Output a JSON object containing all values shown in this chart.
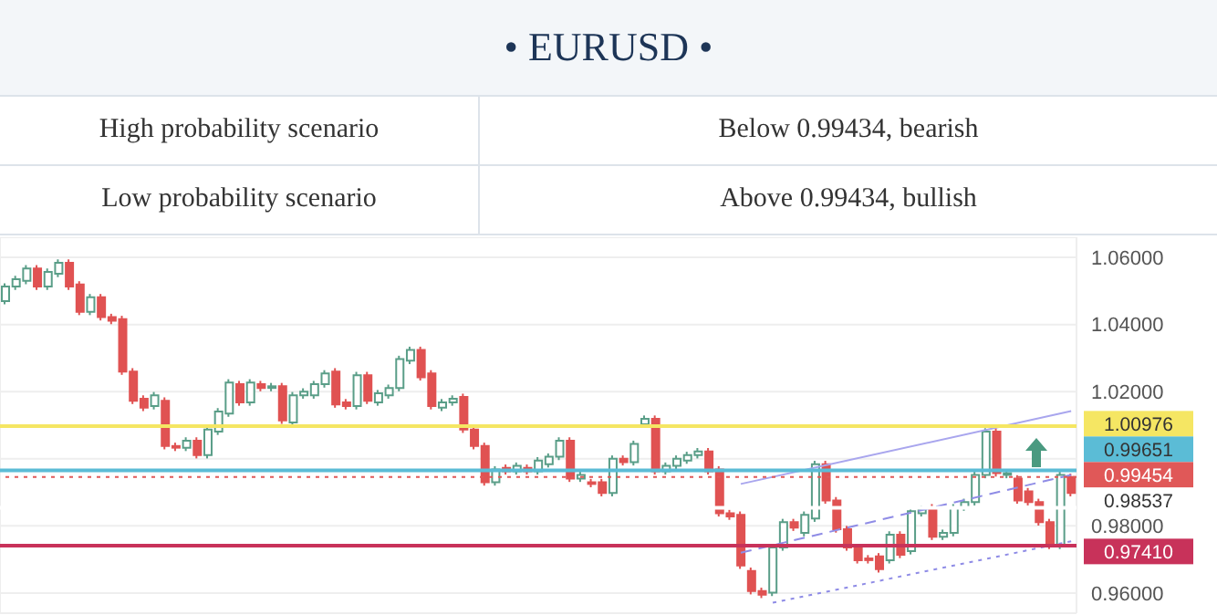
{
  "chart_data": {
    "type": "candlestick",
    "title": "• EURUSD •",
    "annotations": [
      "High probability scenario",
      "Below 0.99434, bearish",
      "Low probability scenario",
      "Above 0.99434, bullish"
    ],
    "categories": [
      null,
      null,
      null,
      null,
      null,
      null,
      null,
      null,
      null,
      null,
      null,
      null,
      null,
      null,
      null,
      null,
      null,
      null,
      null,
      null,
      null,
      null,
      null,
      null,
      null,
      null,
      null,
      null,
      null,
      null,
      null,
      null,
      null,
      null,
      null,
      null,
      null,
      null,
      null,
      null,
      null,
      null,
      null,
      null,
      null,
      null,
      null,
      null,
      null,
      null,
      null,
      null,
      null,
      null,
      null,
      null,
      null,
      null,
      null,
      null,
      null,
      null,
      null,
      null,
      null,
      null,
      null,
      null,
      null,
      null,
      null,
      null,
      null,
      null,
      null,
      null,
      null,
      null,
      null,
      null,
      null,
      null,
      null,
      null,
      null,
      null,
      null,
      null,
      null,
      null,
      null,
      null,
      null,
      null,
      null,
      null,
      null,
      null,
      null,
      null,
      null
    ],
    "ohlc": [
      [
        1.047,
        1.0523,
        1.046,
        1.0513
      ],
      [
        1.0513,
        1.0545,
        1.0503,
        1.0535
      ],
      [
        1.053,
        1.0577,
        1.052,
        1.0567
      ],
      [
        1.0567,
        1.0577,
        1.0503,
        1.0513
      ],
      [
        1.0513,
        1.0567,
        1.0503,
        1.0557
      ],
      [
        1.0551,
        1.0594,
        1.0541,
        1.0584
      ],
      [
        1.0584,
        1.0594,
        1.0503,
        1.0513
      ],
      [
        1.0519,
        1.0529,
        1.0428,
        1.0438
      ],
      [
        1.0438,
        1.0491,
        1.0428,
        1.0481
      ],
      [
        1.0481,
        1.0491,
        1.0412,
        1.0422
      ],
      [
        1.0422,
        1.0432,
        1.0401,
        1.0411
      ],
      [
        1.0416,
        1.0426,
        1.025,
        1.026
      ],
      [
        1.026,
        1.027,
        1.0163,
        1.0173
      ],
      [
        1.0179,
        1.0189,
        1.0142,
        1.0152
      ],
      [
        1.0157,
        1.0199,
        1.0147,
        1.0189
      ],
      [
        1.0173,
        1.0183,
        1.0028,
        1.0038
      ],
      [
        1.0038,
        1.0048,
        1.0023,
        1.0033
      ],
      [
        1.0033,
        1.0064,
        1.0023,
        1.0054
      ],
      [
        1.0054,
        1.0064,
        1.0001,
        1.0011
      ],
      [
        1.0011,
        1.0097,
        1.0001,
        1.0087
      ],
      [
        1.0081,
        1.0151,
        1.0071,
        1.0141
      ],
      [
        1.0135,
        1.0237,
        1.0125,
        1.0227
      ],
      [
        1.0222,
        1.0232,
        1.0158,
        1.0168
      ],
      [
        1.0168,
        1.0237,
        1.0158,
        1.0227
      ],
      [
        1.0222,
        1.0232,
        1.0201,
        1.0211
      ],
      [
        1.0211,
        1.0226,
        1.0201,
        1.0216
      ],
      [
        1.0216,
        1.0226,
        1.0104,
        1.0114
      ],
      [
        1.0108,
        1.0199,
        1.0098,
        1.0189
      ],
      [
        1.0189,
        1.021,
        1.0179,
        1.02
      ],
      [
        1.0189,
        1.0232,
        1.0179,
        1.0222
      ],
      [
        1.0222,
        1.0264,
        1.0212,
        1.0254
      ],
      [
        1.026,
        1.027,
        1.0152,
        1.0162
      ],
      [
        1.0168,
        1.0178,
        1.0147,
        1.0157
      ],
      [
        1.0157,
        1.0259,
        1.0147,
        1.0249
      ],
      [
        1.0249,
        1.0259,
        1.0163,
        1.0173
      ],
      [
        1.0168,
        1.0205,
        1.0158,
        1.0195
      ],
      [
        1.0189,
        1.0221,
        1.0179,
        1.0211
      ],
      [
        1.0211,
        1.0307,
        1.0201,
        1.0297
      ],
      [
        1.0292,
        1.0334,
        1.0282,
        1.0324
      ],
      [
        1.0324,
        1.0334,
        1.0233,
        1.0243
      ],
      [
        1.0254,
        1.0264,
        1.0147,
        1.0157
      ],
      [
        1.0152,
        1.0178,
        1.0142,
        1.0168
      ],
      [
        1.0168,
        1.0189,
        1.0158,
        1.0179
      ],
      [
        1.0184,
        1.0194,
        1.0077,
        1.0087
      ],
      [
        1.0087,
        1.0097,
        1.0028,
        1.0038
      ],
      [
        1.0038,
        1.0048,
        0.992,
        0.993
      ],
      [
        0.993,
        0.9978,
        0.992,
        0.9968
      ],
      [
        0.9973,
        0.9983,
        0.9953,
        0.9963
      ],
      [
        0.9963,
        0.9989,
        0.9953,
        0.9979
      ],
      [
        0.9973,
        0.9983,
        0.9953,
        0.9963
      ],
      [
        0.9963,
        1.0005,
        0.9953,
        0.9995
      ],
      [
        0.9984,
        1.0016,
        0.9974,
        1.0006
      ],
      [
        1.0006,
        1.0064,
        0.9996,
        1.0054
      ],
      [
        1.0054,
        1.0064,
        0.9931,
        0.9941
      ],
      [
        0.9941,
        0.9962,
        0.9931,
        0.9952
      ],
      [
        0.993,
        0.994,
        0.9915,
        0.9925
      ],
      [
        0.993,
        0.994,
        0.9888,
        0.9898
      ],
      [
        0.9898,
        1.001,
        0.9888,
        1.0
      ],
      [
        1.0,
        1.001,
        0.998,
        0.999
      ],
      [
        0.999,
        1.0054,
        0.998,
        1.0044
      ],
      [
        1.0103,
        1.0129,
        1.0093,
        1.0119
      ],
      [
        1.0119,
        1.0129,
        0.9953,
        0.9963
      ],
      [
        0.9963,
        0.9989,
        0.9953,
        0.9979
      ],
      [
        0.9979,
        1.001,
        0.9969,
        1.0
      ],
      [
        0.9995,
        1.0021,
        0.9985,
        1.0011
      ],
      [
        1.0011,
        1.0032,
        1.0001,
        1.0022
      ],
      [
        1.0022,
        1.0032,
        0.9953,
        0.9963
      ],
      [
        0.9968,
        0.9978,
        0.9828,
        0.9838
      ],
      [
        0.9838,
        0.9848,
        0.9818,
        0.9828
      ],
      [
        0.9833,
        0.9843,
        0.9672,
        0.9682
      ],
      [
        0.9666,
        0.9676,
        0.9596,
        0.9606
      ],
      [
        0.9606,
        0.9616,
        0.9585,
        0.9595
      ],
      [
        0.9601,
        0.9746,
        0.9591,
        0.9736
      ],
      [
        0.9736,
        0.9821,
        0.9726,
        0.9811
      ],
      [
        0.9811,
        0.9821,
        0.9785,
        0.9795
      ],
      [
        0.9779,
        0.9843,
        0.9769,
        0.9833
      ],
      [
        0.9822,
        0.9994,
        0.9812,
        0.9984
      ],
      [
        0.9984,
        0.9994,
        0.9866,
        0.9876
      ],
      [
        0.9876,
        0.9886,
        0.978,
        0.979
      ],
      [
        0.979,
        0.98,
        0.9726,
        0.9736
      ],
      [
        0.9736,
        0.9746,
        0.9688,
        0.9698
      ],
      [
        0.9703,
        0.9713,
        0.9688,
        0.9698
      ],
      [
        0.9709,
        0.9719,
        0.9661,
        0.9671
      ],
      [
        0.9698,
        0.9784,
        0.9688,
        0.9774
      ],
      [
        0.9774,
        0.9784,
        0.9704,
        0.9714
      ],
      [
        0.9725,
        0.9854,
        0.9715,
        0.9844
      ],
      [
        0.9838,
        0.9859,
        0.9828,
        0.9849
      ],
      [
        0.9855,
        0.9865,
        0.9758,
        0.9768
      ],
      [
        0.9768,
        0.9789,
        0.9758,
        0.9779
      ],
      [
        0.9779,
        0.9865,
        0.9769,
        0.9855
      ],
      [
        0.9855,
        0.9881,
        0.9845,
        0.9871
      ],
      [
        0.9871,
        0.9962,
        0.9861,
        0.9952
      ],
      [
        0.9952,
        1.0091,
        0.9942,
        1.0081
      ],
      [
        1.0081,
        1.0091,
        0.9947,
        0.9957
      ],
      [
        0.9952,
        0.9967,
        0.9942,
        0.9957
      ],
      [
        0.9941,
        0.9951,
        0.9866,
        0.9876
      ],
      [
        0.9903,
        0.9913,
        0.9861,
        0.9871
      ],
      [
        0.9871,
        0.9881,
        0.9801,
        0.9811
      ],
      [
        0.9811,
        0.9821,
        0.9731,
        0.9741
      ],
      [
        0.9741,
        0.9962,
        0.9731,
        0.9952
      ],
      [
        0.9946,
        0.9956,
        0.9888,
        0.9898
      ]
    ],
    "colors": [
      "#5a9e88",
      "#5a9e88",
      "#5a9e88",
      "#e05252",
      "#5a9e88",
      "#5a9e88",
      "#e05252",
      "#e05252",
      "#5a9e88",
      "#e05252",
      "#e05252",
      "#e05252",
      "#e05252",
      "#e05252",
      "#5a9e88",
      "#e05252",
      "#e05252",
      "#5a9e88",
      "#e05252",
      "#5a9e88",
      "#5a9e88",
      "#5a9e88",
      "#e05252",
      "#5a9e88",
      "#e05252",
      "#5a9e88",
      "#e05252",
      "#5a9e88",
      "#5a9e88",
      "#5a9e88",
      "#5a9e88",
      "#e05252",
      "#e05252",
      "#5a9e88",
      "#e05252",
      "#5a9e88",
      "#5a9e88",
      "#5a9e88",
      "#5a9e88",
      "#e05252",
      "#e05252",
      "#5a9e88",
      "#5a9e88",
      "#e05252",
      "#e05252",
      "#e05252",
      "#5a9e88",
      "#e05252",
      "#5a9e88",
      "#e05252",
      "#5a9e88",
      "#5a9e88",
      "#5a9e88",
      "#e05252",
      "#5a9e88",
      "#e05252",
      "#e05252",
      "#5a9e88",
      "#e05252",
      "#5a9e88",
      "#5a9e88",
      "#e05252",
      "#5a9e88",
      "#5a9e88",
      "#5a9e88",
      "#5a9e88",
      "#e05252",
      "#e05252",
      "#e05252",
      "#e05252",
      "#e05252",
      "#e05252",
      "#5a9e88",
      "#5a9e88",
      "#e05252",
      "#5a9e88",
      "#5a9e88",
      "#e05252",
      "#e05252",
      "#e05252",
      "#e05252",
      "#e05252",
      "#e05252",
      "#5a9e88",
      "#e05252",
      "#5a9e88",
      "#5a9e88",
      "#e05252",
      "#5a9e88",
      "#5a9e88",
      "#5a9e88",
      "#5a9e88",
      "#5a9e88",
      "#e05252",
      "#5a9e88",
      "#e05252",
      "#e05252",
      "#e05252",
      "#e05252",
      "#5a9e88",
      "#e05252"
    ],
    "series": [
      {
        "type": "line",
        "color": "#a9a6ee",
        "line_style": "solid",
        "values": [
          null,
          null,
          null,
          null,
          null,
          null,
          null,
          null,
          null,
          null,
          null,
          null,
          null,
          null,
          null,
          null,
          null,
          null,
          null,
          null,
          null,
          null,
          null,
          null,
          null,
          null,
          null,
          null,
          null,
          null,
          null,
          null,
          null,
          null,
          null,
          null,
          null,
          null,
          null,
          null,
          null,
          null,
          null,
          null,
          null,
          null,
          null,
          null,
          null,
          null,
          null,
          null,
          null,
          null,
          null,
          null,
          null,
          null,
          null,
          null,
          null,
          null,
          null,
          null,
          null,
          null,
          null,
          null,
          null,
          0.9925,
          null,
          null,
          null,
          null,
          null,
          null,
          null,
          null,
          null,
          null,
          null,
          null,
          null,
          null,
          null,
          null,
          null,
          null,
          null,
          null,
          null,
          null,
          null,
          null,
          null,
          null,
          null,
          null,
          null,
          null,
          1.0142
        ]
      },
      {
        "type": "line",
        "color": "#8f8ce6",
        "line_style": "dashed",
        "values": [
          null,
          null,
          null,
          null,
          null,
          null,
          null,
          null,
          null,
          null,
          null,
          null,
          null,
          null,
          null,
          null,
          null,
          null,
          null,
          null,
          null,
          null,
          null,
          null,
          null,
          null,
          null,
          null,
          null,
          null,
          null,
          null,
          null,
          null,
          null,
          null,
          null,
          null,
          null,
          null,
          null,
          null,
          null,
          null,
          null,
          null,
          null,
          null,
          null,
          null,
          null,
          null,
          null,
          null,
          null,
          null,
          null,
          null,
          null,
          null,
          null,
          null,
          null,
          null,
          null,
          null,
          null,
          null,
          null,
          0.972,
          null,
          null,
          null,
          null,
          null,
          null,
          null,
          null,
          null,
          null,
          null,
          null,
          null,
          null,
          null,
          null,
          null,
          null,
          null,
          null,
          null,
          null,
          null,
          null,
          null,
          null,
          null,
          null,
          null,
          null,
          0.9952
        ]
      },
      {
        "type": "line",
        "color": "#8f8ce6",
        "line_style": "dotted",
        "values": [
          null,
          null,
          null,
          null,
          null,
          null,
          null,
          null,
          null,
          null,
          null,
          null,
          null,
          null,
          null,
          null,
          null,
          null,
          null,
          null,
          null,
          null,
          null,
          null,
          null,
          null,
          null,
          null,
          null,
          null,
          null,
          null,
          null,
          null,
          null,
          null,
          null,
          null,
          null,
          null,
          null,
          null,
          null,
          null,
          null,
          null,
          null,
          null,
          null,
          null,
          null,
          null,
          null,
          null,
          null,
          null,
          null,
          null,
          null,
          null,
          null,
          null,
          null,
          null,
          null,
          null,
          null,
          null,
          null,
          null,
          null,
          null,
          0.9571,
          null,
          null,
          null,
          null,
          null,
          null,
          null,
          null,
          null,
          null,
          null,
          null,
          null,
          null,
          null,
          null,
          null,
          null,
          null,
          null,
          null,
          null,
          null,
          null,
          null,
          null,
          null,
          0.9754
        ]
      }
    ],
    "ref_lines": [
      {
        "axis": "y",
        "value": 1.00976,
        "label": "1.00976",
        "color": "#f5e663",
        "line_style": "solid"
      },
      {
        "axis": "y",
        "value": 0.99651,
        "label": "0.99651",
        "color": "#5bbcd6",
        "line_style": "solid"
      },
      {
        "axis": "y",
        "value": 0.99454,
        "label": "0.99454",
        "color": "#e05858",
        "line_style": "dotted"
      },
      {
        "axis": "y",
        "value": 0.98537,
        "label": "0.98537",
        "color": "#ffffff",
        "line_style": "solid"
      },
      {
        "axis": "y",
        "value": 0.9741,
        "label": "0.97410",
        "color": "#c8325a",
        "line_style": "solid"
      }
    ],
    "ylim": [
      0.954,
      1.066
    ],
    "yticks": [
      {
        "value": 0.96,
        "label": "0.96000"
      },
      {
        "value": 0.98,
        "label": "0.98000"
      },
      {
        "value": 1,
        "label": null
      },
      {
        "value": 1.02,
        "label": "1.02000"
      },
      {
        "value": 1.04,
        "label": "1.04000"
      },
      {
        "value": 1.06,
        "label": "1.06000"
      }
    ],
    "grid": true,
    "tick_labels": "y"
  }
}
